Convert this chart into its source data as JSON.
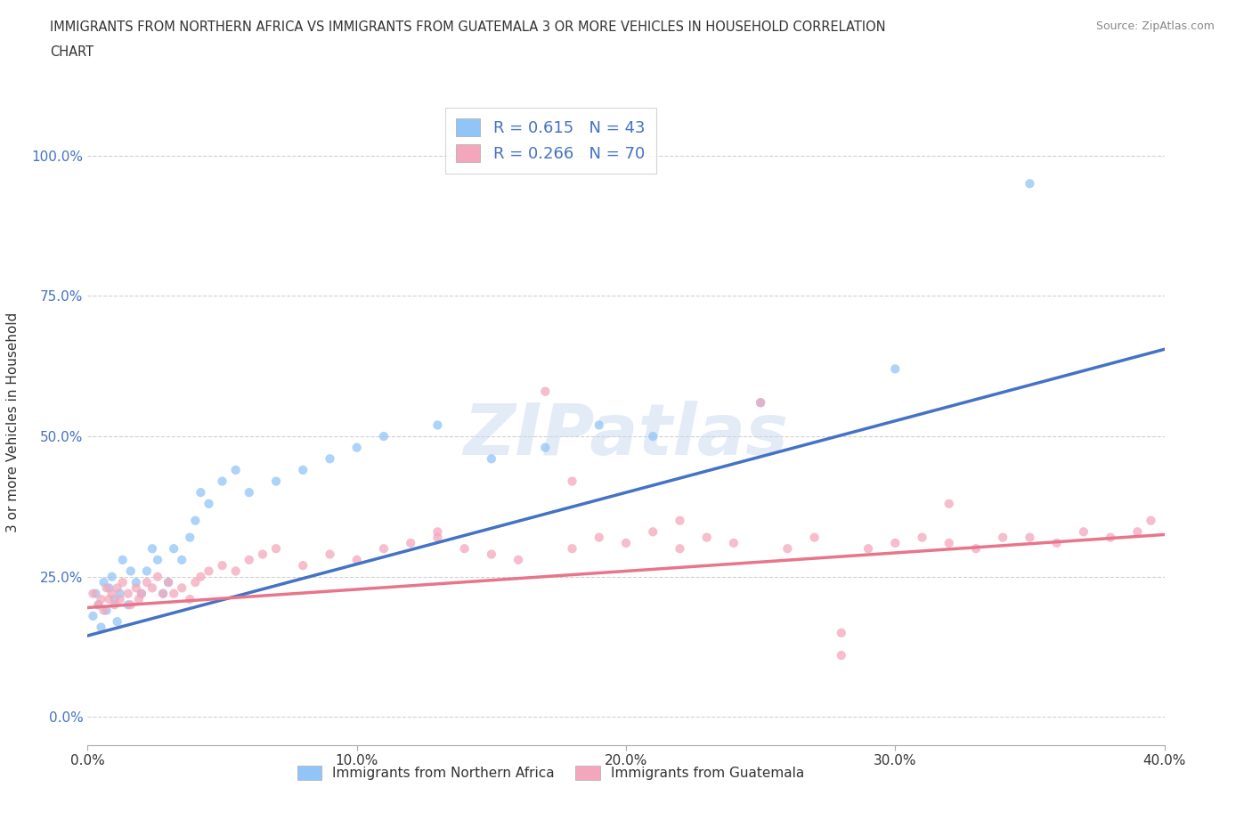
{
  "title_line1": "IMMIGRANTS FROM NORTHERN AFRICA VS IMMIGRANTS FROM GUATEMALA 3 OR MORE VEHICLES IN HOUSEHOLD CORRELATION",
  "title_line2": "CHART",
  "source": "Source: ZipAtlas.com",
  "ylabel": "3 or more Vehicles in Household",
  "xlim": [
    0.0,
    0.4
  ],
  "ylim": [
    -0.05,
    1.1
  ],
  "xticks": [
    0.0,
    0.1,
    0.2,
    0.3,
    0.4
  ],
  "yticks": [
    0.0,
    0.25,
    0.5,
    0.75,
    1.0
  ],
  "xtick_labels": [
    "0.0%",
    "10.0%",
    "20.0%",
    "30.0%",
    "40.0%"
  ],
  "ytick_labels": [
    "0.0%",
    "25.0%",
    "50.0%",
    "75.0%",
    "100.0%"
  ],
  "blue_color": "#92C5F7",
  "pink_color": "#F4A7BC",
  "blue_line_color": "#4472C4",
  "pink_line_color": "#E8758A",
  "R_blue": 0.615,
  "N_blue": 43,
  "R_pink": 0.266,
  "N_pink": 70,
  "legend_label_blue": "Immigrants from Northern Africa",
  "legend_label_pink": "Immigrants from Guatemala",
  "watermark": "ZIPatlas",
  "blue_scatter_x": [
    0.002,
    0.003,
    0.004,
    0.005,
    0.006,
    0.007,
    0.008,
    0.009,
    0.01,
    0.011,
    0.012,
    0.013,
    0.015,
    0.016,
    0.018,
    0.02,
    0.022,
    0.024,
    0.026,
    0.028,
    0.03,
    0.032,
    0.035,
    0.038,
    0.04,
    0.042,
    0.045,
    0.05,
    0.055,
    0.06,
    0.07,
    0.08,
    0.09,
    0.1,
    0.11,
    0.13,
    0.15,
    0.17,
    0.19,
    0.21,
    0.25,
    0.3,
    0.35
  ],
  "blue_scatter_y": [
    0.18,
    0.22,
    0.2,
    0.16,
    0.24,
    0.19,
    0.23,
    0.25,
    0.21,
    0.17,
    0.22,
    0.28,
    0.2,
    0.26,
    0.24,
    0.22,
    0.26,
    0.3,
    0.28,
    0.22,
    0.24,
    0.3,
    0.28,
    0.32,
    0.35,
    0.4,
    0.38,
    0.42,
    0.44,
    0.4,
    0.42,
    0.44,
    0.46,
    0.48,
    0.5,
    0.52,
    0.46,
    0.48,
    0.52,
    0.5,
    0.56,
    0.62,
    0.95
  ],
  "pink_scatter_x": [
    0.002,
    0.004,
    0.005,
    0.006,
    0.007,
    0.008,
    0.009,
    0.01,
    0.011,
    0.012,
    0.013,
    0.015,
    0.016,
    0.018,
    0.019,
    0.02,
    0.022,
    0.024,
    0.026,
    0.028,
    0.03,
    0.032,
    0.035,
    0.038,
    0.04,
    0.042,
    0.045,
    0.05,
    0.055,
    0.06,
    0.065,
    0.07,
    0.08,
    0.09,
    0.1,
    0.11,
    0.12,
    0.13,
    0.14,
    0.15,
    0.16,
    0.17,
    0.18,
    0.19,
    0.2,
    0.21,
    0.22,
    0.23,
    0.24,
    0.25,
    0.26,
    0.27,
    0.28,
    0.29,
    0.3,
    0.31,
    0.32,
    0.33,
    0.34,
    0.35,
    0.36,
    0.37,
    0.38,
    0.39,
    0.395,
    0.13,
    0.18,
    0.22,
    0.28,
    0.32
  ],
  "pink_scatter_y": [
    0.22,
    0.2,
    0.21,
    0.19,
    0.23,
    0.21,
    0.22,
    0.2,
    0.23,
    0.21,
    0.24,
    0.22,
    0.2,
    0.23,
    0.21,
    0.22,
    0.24,
    0.23,
    0.25,
    0.22,
    0.24,
    0.22,
    0.23,
    0.21,
    0.24,
    0.25,
    0.26,
    0.27,
    0.26,
    0.28,
    0.29,
    0.3,
    0.27,
    0.29,
    0.28,
    0.3,
    0.31,
    0.32,
    0.3,
    0.29,
    0.28,
    0.58,
    0.3,
    0.32,
    0.31,
    0.33,
    0.3,
    0.32,
    0.31,
    0.56,
    0.3,
    0.32,
    0.11,
    0.3,
    0.31,
    0.32,
    0.31,
    0.3,
    0.32,
    0.32,
    0.31,
    0.33,
    0.32,
    0.33,
    0.35,
    0.33,
    0.42,
    0.35,
    0.15,
    0.38
  ],
  "blue_line_x": [
    0.0,
    0.4
  ],
  "blue_line_y": [
    0.145,
    0.655
  ],
  "pink_line_x": [
    0.0,
    0.4
  ],
  "pink_line_y": [
    0.195,
    0.325
  ],
  "background_color": "#FFFFFF",
  "grid_color": "#CCCCCC",
  "scatter_size": 55,
  "scatter_alpha": 0.75
}
